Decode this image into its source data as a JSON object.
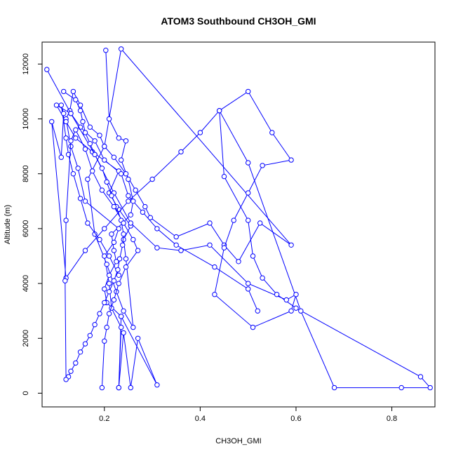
{
  "chart_data": {
    "type": "line",
    "title": "ATOM3 Southbound CH3OH_GMI",
    "xlabel": "CH3OH_GMI",
    "ylabel": "Altitude (m)",
    "xlim": [
      0.07,
      0.89
    ],
    "ylim": [
      -500,
      12800
    ],
    "xticks": [
      {
        "value": 0.2,
        "label": "0.2"
      },
      {
        "value": 0.4,
        "label": "0.4"
      },
      {
        "value": 0.6,
        "label": "0.6"
      },
      {
        "value": 0.8,
        "label": "0.8"
      }
    ],
    "yticks": [
      {
        "value": 0,
        "label": "0"
      },
      {
        "value": 2000,
        "label": "2000"
      },
      {
        "value": 4000,
        "label": "4000"
      },
      {
        "value": 6000,
        "label": "6000"
      },
      {
        "value": 8000,
        "label": "8000"
      },
      {
        "value": 10000,
        "label": "10000"
      },
      {
        "value": 12000,
        "label": "12000"
      }
    ],
    "grid": false,
    "color": "#0000ff",
    "marker": "open-circle",
    "series": [
      {
        "x": [
          0.203,
          0.21,
          0.23,
          0.245,
          0.235,
          0.25,
          0.26,
          0.255,
          0.215,
          0.22,
          0.225,
          0.21,
          0.2,
          0.205,
          0.235,
          0.23,
          0.24,
          0.255,
          0.27,
          0.31,
          0.235,
          0.23,
          0.235,
          0.215,
          0.21,
          0.2,
          0.22,
          0.23,
          0.16,
          0.145,
          0.13,
          0.12,
          0.128,
          0.135,
          0.15,
          0.17,
          0.19,
          0.2,
          0.22,
          0.245,
          0.265,
          0.285,
          0.296,
          0.35,
          0.42,
          0.45,
          0.48,
          0.525,
          0.59,
          0.235,
          0.2,
          0.165,
          0.18,
          0.205,
          0.225,
          0.24,
          0.26,
          0.245,
          0.24,
          0.255,
          0.23,
          0.21,
          0.23,
          0.175,
          0.14,
          0.12,
          0.1,
          0.13,
          0.15,
          0.18,
          0.2,
          0.235,
          0.25,
          0.28,
          0.31,
          0.35,
          0.43,
          0.5,
          0.52
        ],
        "y": [
          12500,
          10000,
          9300,
          9200,
          8500,
          7800,
          7000,
          6500,
          5800,
          5200,
          4800,
          4300,
          3800,
          3300,
          2800,
          200,
          2200,
          200,
          2000,
          300,
          2800,
          200,
          2400,
          3100,
          4000,
          5000,
          5500,
          6000,
          7000,
          8200,
          9000,
          10000,
          10300,
          11000,
          10500,
          9700,
          9400,
          9000,
          8600,
          8000,
          7400,
          6800,
          6400,
          5700,
          6200,
          5400,
          4800,
          6200,
          5400,
          12550,
          9000,
          7800,
          5800,
          4700,
          3700,
          3000,
          2400,
          4900,
          5600,
          6100,
          6700,
          7300,
          8100,
          8800,
          9300,
          9900,
          10500,
          10200,
          9700,
          9200,
          8500,
          8000,
          7200,
          6600,
          6000,
          5400,
          4600,
          3800,
          3000
        ]
      },
      {
        "x": [
          0.08,
          0.13,
          0.18,
          0.22,
          0.255,
          0.31,
          0.36,
          0.42,
          0.5,
          0.58,
          0.6,
          0.59,
          0.51,
          0.43,
          0.45,
          0.47,
          0.5,
          0.53,
          0.59,
          0.55,
          0.5,
          0.44,
          0.5,
          0.61,
          0.68,
          0.82,
          0.88,
          0.86,
          0.6,
          0.56,
          0.53,
          0.51,
          0.5,
          0.45,
          0.44,
          0.4,
          0.36,
          0.3,
          0.25,
          0.2,
          0.16,
          0.12,
          0.09,
          0.11,
          0.115,
          0.11,
          0.12,
          0.125,
          0.135,
          0.15,
          0.165,
          0.19,
          0.21,
          0.23
        ],
        "y": [
          11800,
          10200,
          8700,
          7300,
          6200,
          5300,
          5200,
          5400,
          4000,
          3400,
          3600,
          3000,
          2400,
          3600,
          5300,
          6300,
          7300,
          8300,
          8500,
          9500,
          11000,
          10300,
          8400,
          3000,
          200,
          200,
          200,
          600,
          3100,
          3600,
          4200,
          5000,
          6300,
          7900,
          10300,
          9500,
          8800,
          7800,
          7000,
          6000,
          5200,
          4200,
          9900,
          8600,
          10200,
          10500,
          9300,
          8700,
          8000,
          7100,
          6200,
          5600,
          5000,
          4300
        ]
      },
      {
        "x": [
          0.115,
          0.14,
          0.15,
          0.155,
          0.16,
          0.17,
          0.18,
          0.195,
          0.205,
          0.215,
          0.225,
          0.235,
          0.24,
          0.238,
          0.232,
          0.228,
          0.22,
          0.21,
          0.2,
          0.19,
          0.18,
          0.17,
          0.16,
          0.15,
          0.14,
          0.13,
          0.125,
          0.12,
          0.118,
          0.12,
          0.13,
          0.14,
          0.16,
          0.175,
          0.195,
          0.22,
          0.24,
          0.26,
          0.27,
          0.245,
          0.23,
          0.22,
          0.21,
          0.205,
          0.2,
          0.195
        ],
        "y": [
          11000,
          10700,
          10300,
          9900,
          9500,
          9100,
          8700,
          8200,
          7700,
          7200,
          6800,
          6300,
          5800,
          5400,
          4900,
          4500,
          4100,
          3700,
          3300,
          2900,
          2500,
          2100,
          1800,
          1500,
          1100,
          800,
          600,
          500,
          4100,
          6300,
          9200,
          9600,
          8900,
          8100,
          7400,
          6800,
          6200,
          5600,
          5200,
          4600,
          4000,
          3400,
          2900,
          2400,
          1900,
          200
        ]
      }
    ]
  }
}
